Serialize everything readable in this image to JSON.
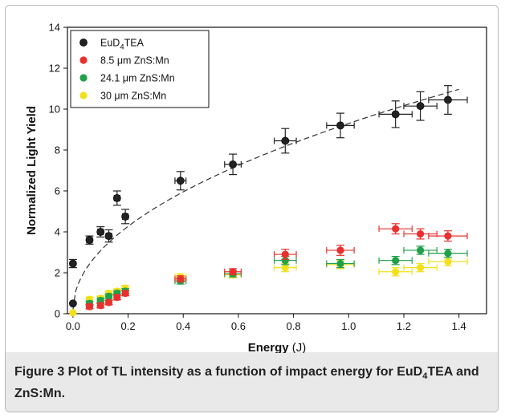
{
  "chart_data": {
    "type": "scatter",
    "xlabel": "Energy",
    "xlabel_unit": "(J)",
    "ylabel": "Normalized Light Yield",
    "xlim": [
      -0.02,
      1.5
    ],
    "ylim": [
      0,
      14
    ],
    "xticks": [
      "0.0",
      "0.2",
      "0.4",
      "0.6",
      "0.8",
      "1.0",
      "1.2",
      "1.4"
    ],
    "xtick_values": [
      0.0,
      0.2,
      0.4,
      0.6,
      0.8,
      1.0,
      1.2,
      1.4
    ],
    "yticks": [
      "0",
      "2",
      "4",
      "6",
      "8",
      "10",
      "12",
      "14"
    ],
    "ytick_values": [
      0,
      2,
      4,
      6,
      8,
      10,
      12,
      14
    ],
    "legend_position": "top-left",
    "fit_curve": {
      "style": "dashed",
      "series": "EuD4TEA",
      "form": "power",
      "a": 9.1,
      "b": 0.5,
      "c": 0.2
    },
    "series": [
      {
        "name": "EuD4TEA",
        "legend_base": "EuD",
        "legend_sub": "4",
        "legend_tail": "TEA",
        "color": "#222222",
        "x": [
          0.0,
          0.0,
          0.06,
          0.1,
          0.13,
          0.16,
          0.19,
          0.39,
          0.58,
          0.77,
          0.97,
          1.17,
          1.26,
          1.36
        ],
        "y": [
          0.5,
          2.45,
          3.6,
          4.0,
          3.8,
          5.65,
          4.75,
          6.5,
          7.3,
          8.45,
          9.2,
          9.75,
          10.15,
          10.45
        ],
        "xerr": [
          0.0,
          0.0,
          0.01,
          0.01,
          0.01,
          0.01,
          0.01,
          0.02,
          0.03,
          0.04,
          0.05,
          0.06,
          0.06,
          0.07
        ],
        "yerr": [
          0.0,
          0.2,
          0.2,
          0.25,
          0.3,
          0.35,
          0.35,
          0.45,
          0.5,
          0.6,
          0.6,
          0.65,
          0.7,
          0.7
        ]
      },
      {
        "name": "8.5 µm ZnS:Mn",
        "legend_label": "8.5 μm ZnS:Mn",
        "color": "#e8312e",
        "x": [
          0.06,
          0.1,
          0.13,
          0.16,
          0.19,
          0.39,
          0.58,
          0.77,
          0.97,
          1.17,
          1.26,
          1.36
        ],
        "y": [
          0.35,
          0.4,
          0.55,
          0.8,
          1.0,
          1.7,
          2.05,
          2.9,
          3.1,
          4.15,
          3.9,
          3.8
        ],
        "xerr": [
          0.01,
          0.01,
          0.01,
          0.01,
          0.01,
          0.02,
          0.03,
          0.04,
          0.05,
          0.06,
          0.06,
          0.07
        ],
        "yerr": [
          0.1,
          0.1,
          0.1,
          0.12,
          0.12,
          0.15,
          0.15,
          0.25,
          0.25,
          0.25,
          0.25,
          0.25
        ]
      },
      {
        "name": "24.1 µm ZnS:Mn",
        "legend_label": "24.1 μm ZnS:Mn",
        "color": "#1fa148",
        "x": [
          0.06,
          0.1,
          0.13,
          0.16,
          0.19,
          0.39,
          0.58,
          0.77,
          0.97,
          1.17,
          1.26,
          1.36
        ],
        "y": [
          0.5,
          0.65,
          0.85,
          1.0,
          1.1,
          1.6,
          1.95,
          2.6,
          2.45,
          2.6,
          3.1,
          2.95
        ],
        "xerr": [
          0.01,
          0.01,
          0.01,
          0.01,
          0.01,
          0.02,
          0.03,
          0.04,
          0.05,
          0.06,
          0.06,
          0.07
        ],
        "yerr": [
          0.1,
          0.1,
          0.1,
          0.1,
          0.12,
          0.15,
          0.15,
          0.2,
          0.2,
          0.2,
          0.2,
          0.2
        ]
      },
      {
        "name": "30 µm ZnS:Mn",
        "legend_label": "30 μm ZnS:Mn",
        "color": "#f2e11a",
        "x": [
          0.0,
          0.06,
          0.1,
          0.13,
          0.16,
          0.19,
          0.39,
          0.58,
          0.77,
          0.97,
          1.17,
          1.26,
          1.36
        ],
        "y": [
          0.05,
          0.7,
          0.75,
          1.0,
          1.1,
          1.25,
          1.8,
          1.9,
          2.25,
          2.4,
          2.05,
          2.25,
          2.55
        ],
        "xerr": [
          0.0,
          0.01,
          0.01,
          0.01,
          0.01,
          0.01,
          0.02,
          0.03,
          0.04,
          0.05,
          0.06,
          0.06,
          0.07
        ],
        "yerr": [
          0.0,
          0.1,
          0.1,
          0.1,
          0.1,
          0.12,
          0.15,
          0.15,
          0.2,
          0.2,
          0.2,
          0.2,
          0.2
        ]
      }
    ]
  },
  "caption": {
    "label": "Figure 3",
    "text_1": " Plot of TL intensity as a function of impact energy for EuD",
    "sub": "4",
    "text_2": "TEA and ZnS:Mn."
  }
}
